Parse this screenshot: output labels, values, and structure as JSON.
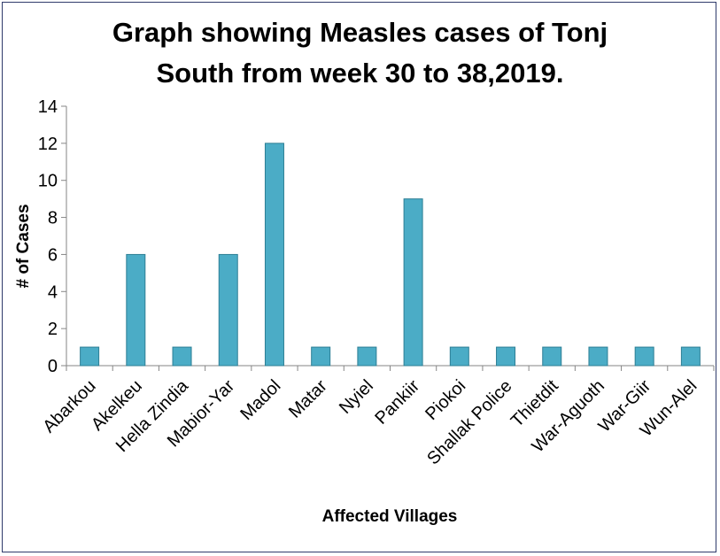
{
  "chart_data": {
    "type": "bar",
    "title_lines": [
      "Graph showing Measles cases of Tonj",
      "South from week 30 to 38,2019."
    ],
    "xlabel": "Affected Villages",
    "ylabel": "# of Cases",
    "ylim": [
      0,
      14
    ],
    "yticks": [
      "0",
      "2",
      "4",
      "6",
      "8",
      "10",
      "12",
      "14"
    ],
    "grid": false,
    "legend": "none",
    "bar_color": "#4bacc6",
    "bar_edge_color": "#2e7f95",
    "categories": [
      "Abarkou",
      "Akelkeu",
      "Hella Zindia",
      "Mabior-Yar",
      "Madol",
      "Matar",
      "Nyiel",
      "Pankiir",
      "Piokoi",
      "Shallak Police",
      "Thietdit",
      "War-Aguoth",
      "War-Giir",
      "Wun-Alel"
    ],
    "values": [
      1,
      6,
      1,
      6,
      12,
      1,
      1,
      9,
      1,
      1,
      1,
      1,
      1,
      1
    ]
  }
}
